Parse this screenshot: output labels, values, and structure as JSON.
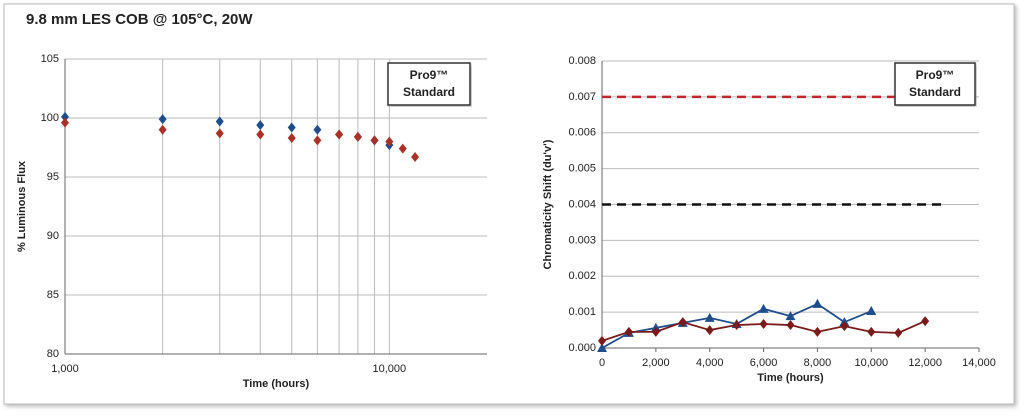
{
  "title": "9.8 mm LES COB @ 105°C, 20W",
  "chart_data": [
    {
      "type": "scatter",
      "x_label": "Time (hours)",
      "y_label": "% Luminous Flux",
      "xlog": true,
      "xlim": [
        1000,
        20000
      ],
      "xticks": [
        {
          "value": 1000,
          "label": "1,000"
        },
        {
          "value": 10000,
          "label": "10,000"
        }
      ],
      "minor_xticks": [
        2000,
        3000,
        4000,
        5000,
        6000,
        7000,
        8000,
        9000
      ],
      "ylim": [
        80,
        105
      ],
      "yticks": [
        80,
        85,
        90,
        95,
        100,
        105
      ],
      "grid": true,
      "legend": "top-right",
      "series": [
        {
          "name": "Pro9™",
          "color": "#1f4e8c",
          "marker": "diamond",
          "x": [
            1000,
            2000,
            3000,
            4000,
            5000,
            6000,
            7000,
            8000,
            9000,
            10000
          ],
          "values": [
            100.1,
            99.9,
            99.7,
            99.4,
            99.2,
            99.0,
            98.6,
            98.4,
            98.1,
            97.7
          ]
        },
        {
          "name": "Standard",
          "color": "#a83228",
          "marker": "diamond",
          "x": [
            1000,
            2000,
            3000,
            4000,
            5000,
            6000,
            7000,
            8000,
            9000,
            10000,
            11000,
            12000
          ],
          "values": [
            99.6,
            99.0,
            98.7,
            98.6,
            98.3,
            98.1,
            98.6,
            98.4,
            98.1,
            98.0,
            97.4,
            96.7
          ]
        }
      ]
    },
    {
      "type": "line",
      "x_label": "Time (hours)",
      "y_label": "Chromaticity Shift (du'v')",
      "xlim": [
        0,
        14000
      ],
      "xticks": [
        0,
        {
          "value": 2000,
          "label": "2,000"
        },
        {
          "value": 4000,
          "label": "4,000"
        },
        {
          "value": 6000,
          "label": "6,000"
        },
        {
          "value": 8000,
          "label": "8,000"
        },
        {
          "value": 10000,
          "label": "10,000"
        },
        {
          "value": 12000,
          "label": "12,000"
        },
        {
          "value": 14000,
          "label": "14,000"
        }
      ],
      "ylim": [
        0,
        0.008
      ],
      "yticks": [
        {
          "value": 0,
          "label": "0.000"
        },
        {
          "value": 0.001,
          "label": "0.001"
        },
        {
          "value": 0.002,
          "label": "0.002"
        },
        {
          "value": 0.003,
          "label": "0.003"
        },
        {
          "value": 0.004,
          "label": "0.004"
        },
        {
          "value": 0.005,
          "label": "0.005"
        },
        {
          "value": 0.006,
          "label": "0.006"
        },
        {
          "value": 0.007,
          "label": "0.007"
        },
        {
          "value": 0.008,
          "label": "0.008"
        }
      ],
      "grid": true,
      "legend": "top-right",
      "reference_lines": [
        {
          "value": 0.007,
          "x": [
            0,
            12700
          ],
          "color": "#c0262b"
        },
        {
          "value": 0.004,
          "x": [
            0,
            12700
          ],
          "color": "#111111"
        }
      ],
      "series": [
        {
          "name": "Pro9™",
          "color": "#1f4e8c",
          "marker": "triangle",
          "x": [
            0,
            1000,
            2000,
            3000,
            4000,
            5000,
            6000,
            7000,
            8000,
            9000,
            10000
          ],
          "values": [
            0,
            0.00042,
            0.00056,
            0.0007,
            0.00084,
            0.00067,
            0.00109,
            0.00089,
            0.00123,
            0.00072,
            0.00103
          ]
        },
        {
          "name": "Standard",
          "color": "#7b1a1a",
          "marker": "diamond",
          "x": [
            0,
            1000,
            2000,
            3000,
            4000,
            5000,
            6000,
            7000,
            8000,
            9000,
            10000,
            11000,
            12000
          ],
          "values": [
            0.0002,
            0.00045,
            0.00045,
            0.00072,
            0.0005,
            0.00064,
            0.00067,
            0.00064,
            0.00045,
            0.00061,
            0.00045,
            0.00042,
            0.00075
          ]
        }
      ]
    }
  ]
}
